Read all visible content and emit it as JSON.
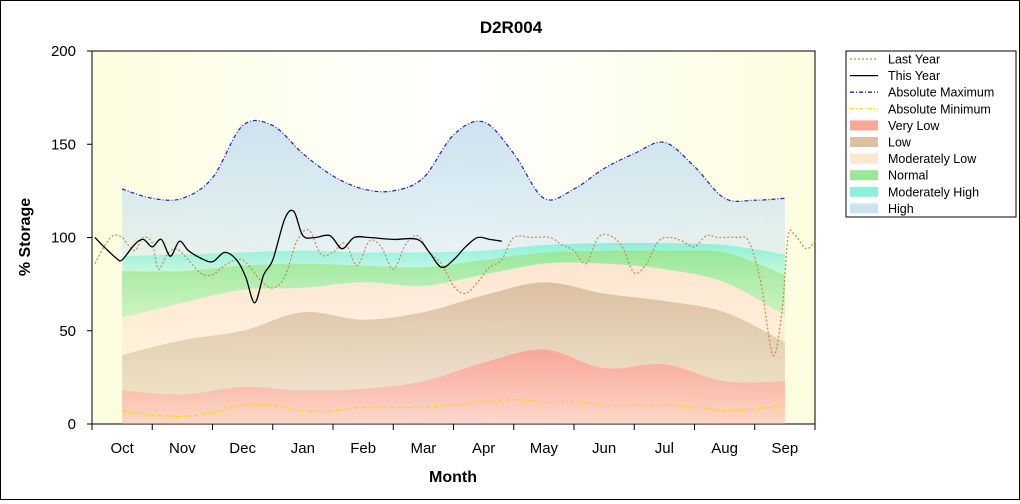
{
  "chart_data": {
    "type": "area",
    "title": "D2R004",
    "xlabel": "Month",
    "ylabel": "% Storage",
    "ylim": [
      0,
      200
    ],
    "yticks": [
      0,
      50,
      100,
      150,
      200
    ],
    "xlim": [
      -0.5,
      11.5
    ],
    "categories": [
      "Oct",
      "Nov",
      "Dec",
      "Jan",
      "Feb",
      "Mar",
      "Apr",
      "May",
      "Jun",
      "Jul",
      "Aug",
      "Sep"
    ],
    "grid": false,
    "legend_position": "right",
    "bands": [
      {
        "name": "Very Low",
        "color": "#f9a796",
        "lower": [
          [
            0,
            0
          ],
          [
            11,
            0
          ]
        ],
        "upper": [
          [
            0,
            18
          ],
          [
            1,
            16
          ],
          [
            2,
            20
          ],
          [
            3,
            18
          ],
          [
            4,
            19
          ],
          [
            5,
            23
          ],
          [
            6,
            33
          ],
          [
            7,
            40
          ],
          [
            8,
            30
          ],
          [
            9,
            32
          ],
          [
            10,
            23
          ],
          [
            11,
            23
          ]
        ]
      },
      {
        "name": "Low",
        "color": "#dcc0a0",
        "lower": [
          [
            0,
            18
          ],
          [
            1,
            16
          ],
          [
            2,
            20
          ],
          [
            3,
            18
          ],
          [
            4,
            19
          ],
          [
            5,
            23
          ],
          [
            6,
            33
          ],
          [
            7,
            40
          ],
          [
            8,
            30
          ],
          [
            9,
            32
          ],
          [
            10,
            23
          ],
          [
            11,
            23
          ]
        ],
        "upper": [
          [
            0,
            37
          ],
          [
            1,
            45
          ],
          [
            2,
            50
          ],
          [
            3,
            60
          ],
          [
            4,
            56
          ],
          [
            5,
            60
          ],
          [
            6,
            69
          ],
          [
            7,
            76
          ],
          [
            8,
            70
          ],
          [
            9,
            66
          ],
          [
            10,
            60
          ],
          [
            11,
            44
          ]
        ]
      },
      {
        "name": "Moderately Low",
        "color": "#fde5d0",
        "lower": [
          [
            0,
            37
          ],
          [
            1,
            45
          ],
          [
            2,
            50
          ],
          [
            3,
            60
          ],
          [
            4,
            56
          ],
          [
            5,
            60
          ],
          [
            6,
            69
          ],
          [
            7,
            76
          ],
          [
            8,
            70
          ],
          [
            9,
            66
          ],
          [
            10,
            60
          ],
          [
            11,
            44
          ]
        ],
        "upper": [
          [
            0,
            57
          ],
          [
            1,
            65
          ],
          [
            2,
            72
          ],
          [
            3,
            73
          ],
          [
            4,
            76
          ],
          [
            5,
            74
          ],
          [
            6,
            80
          ],
          [
            7,
            86
          ],
          [
            8,
            86
          ],
          [
            9,
            83
          ],
          [
            10,
            76
          ],
          [
            11,
            58
          ]
        ]
      },
      {
        "name": "Normal",
        "color": "#98e898",
        "lower": [
          [
            0,
            57
          ],
          [
            1,
            65
          ],
          [
            2,
            72
          ],
          [
            3,
            73
          ],
          [
            4,
            76
          ],
          [
            5,
            74
          ],
          [
            6,
            80
          ],
          [
            7,
            86
          ],
          [
            8,
            86
          ],
          [
            9,
            83
          ],
          [
            10,
            76
          ],
          [
            11,
            58
          ]
        ],
        "upper": [
          [
            0,
            82
          ],
          [
            1,
            82
          ],
          [
            2,
            85
          ],
          [
            3,
            86
          ],
          [
            4,
            85
          ],
          [
            5,
            84
          ],
          [
            6,
            88
          ],
          [
            7,
            92
          ],
          [
            8,
            93
          ],
          [
            9,
            93
          ],
          [
            10,
            92
          ],
          [
            11,
            80
          ]
        ]
      },
      {
        "name": "Moderately High",
        "color": "#8ef0d8",
        "lower": [
          [
            0,
            82
          ],
          [
            1,
            82
          ],
          [
            2,
            85
          ],
          [
            3,
            86
          ],
          [
            4,
            85
          ],
          [
            5,
            84
          ],
          [
            6,
            88
          ],
          [
            7,
            92
          ],
          [
            8,
            93
          ],
          [
            9,
            93
          ],
          [
            10,
            92
          ],
          [
            11,
            80
          ]
        ],
        "upper": [
          [
            0,
            90
          ],
          [
            1,
            91
          ],
          [
            2,
            92
          ],
          [
            3,
            93
          ],
          [
            4,
            92
          ],
          [
            5,
            92
          ],
          [
            6,
            93
          ],
          [
            7,
            96
          ],
          [
            8,
            97
          ],
          [
            9,
            97
          ],
          [
            10,
            96
          ],
          [
            11,
            91
          ]
        ]
      },
      {
        "name": "High",
        "color": "#cce3f0",
        "lower": [
          [
            0,
            90
          ],
          [
            1,
            91
          ],
          [
            2,
            92
          ],
          [
            3,
            93
          ],
          [
            4,
            92
          ],
          [
            5,
            92
          ],
          [
            6,
            93
          ],
          [
            7,
            96
          ],
          [
            8,
            97
          ],
          [
            9,
            97
          ],
          [
            10,
            96
          ],
          [
            11,
            91
          ]
        ],
        "upper": [
          [
            0,
            126
          ],
          [
            0.5,
            121
          ],
          [
            1,
            121
          ],
          [
            1.5,
            132
          ],
          [
            2,
            160
          ],
          [
            2.5,
            160
          ],
          [
            3,
            145
          ],
          [
            3.5,
            133
          ],
          [
            4,
            126
          ],
          [
            4.5,
            125
          ],
          [
            5,
            132
          ],
          [
            5.5,
            155
          ],
          [
            6,
            162
          ],
          [
            6.5,
            145
          ],
          [
            7,
            121
          ],
          [
            7.5,
            126
          ],
          [
            8,
            137
          ],
          [
            8.5,
            145
          ],
          [
            9,
            151
          ],
          [
            9.5,
            138
          ],
          [
            10,
            121
          ],
          [
            10.5,
            120
          ],
          [
            11,
            121
          ]
        ]
      }
    ],
    "series": [
      {
        "name": "Last Year",
        "color": "#cc8844",
        "style": "dotted",
        "points": [
          [
            -0.45,
            86
          ],
          [
            -0.3,
            95
          ],
          [
            -0.15,
            101
          ],
          [
            0,
            100
          ],
          [
            0.2,
            93
          ],
          [
            0.35,
            100
          ],
          [
            0.5,
            97
          ],
          [
            0.6,
            83
          ],
          [
            0.75,
            91
          ],
          [
            0.9,
            94
          ],
          [
            1.1,
            88
          ],
          [
            1.3,
            81
          ],
          [
            1.5,
            80
          ],
          [
            1.75,
            86
          ],
          [
            2.0,
            88
          ],
          [
            2.3,
            77
          ],
          [
            2.5,
            73
          ],
          [
            2.7,
            79
          ],
          [
            2.9,
            98
          ],
          [
            3.1,
            104
          ],
          [
            3.3,
            91
          ],
          [
            3.5,
            92
          ],
          [
            3.7,
            97
          ],
          [
            3.9,
            85
          ],
          [
            4.1,
            98
          ],
          [
            4.3,
            95
          ],
          [
            4.5,
            83
          ],
          [
            4.7,
            96
          ],
          [
            4.9,
            101
          ],
          [
            5.1,
            92
          ],
          [
            5.3,
            86
          ],
          [
            5.5,
            74
          ],
          [
            5.7,
            70
          ],
          [
            5.9,
            76
          ],
          [
            6.1,
            84
          ],
          [
            6.3,
            88
          ],
          [
            6.5,
            100
          ],
          [
            6.8,
            100
          ],
          [
            7.1,
            100
          ],
          [
            7.3,
            96
          ],
          [
            7.5,
            93
          ],
          [
            7.7,
            86
          ],
          [
            7.9,
            100
          ],
          [
            8.1,
            101
          ],
          [
            8.3,
            95
          ],
          [
            8.5,
            81
          ],
          [
            8.7,
            86
          ],
          [
            8.9,
            98
          ],
          [
            9.1,
            100
          ],
          [
            9.3,
            98
          ],
          [
            9.5,
            95
          ],
          [
            9.7,
            101
          ],
          [
            9.9,
            100
          ],
          [
            10.2,
            100
          ],
          [
            10.4,
            98
          ],
          [
            10.6,
            76
          ],
          [
            10.8,
            37
          ],
          [
            10.95,
            60
          ],
          [
            11.05,
            100
          ],
          [
            11.15,
            102
          ],
          [
            11.35,
            94
          ],
          [
            11.5,
            98
          ]
        ]
      },
      {
        "name": "This Year",
        "color": "#000000",
        "style": "solid",
        "points": [
          [
            -0.45,
            100
          ],
          [
            -0.3,
            95
          ],
          [
            -0.1,
            89
          ],
          [
            0,
            88
          ],
          [
            0.2,
            96
          ],
          [
            0.35,
            99
          ],
          [
            0.5,
            95
          ],
          [
            0.65,
            99
          ],
          [
            0.8,
            90
          ],
          [
            0.95,
            98
          ],
          [
            1.1,
            93
          ],
          [
            1.3,
            89
          ],
          [
            1.5,
            87
          ],
          [
            1.7,
            92
          ],
          [
            1.9,
            88
          ],
          [
            2.05,
            79
          ],
          [
            2.2,
            65
          ],
          [
            2.35,
            80
          ],
          [
            2.5,
            88
          ],
          [
            2.7,
            110
          ],
          [
            2.85,
            114
          ],
          [
            3.0,
            101
          ],
          [
            3.2,
            100
          ],
          [
            3.45,
            101
          ],
          [
            3.65,
            94
          ],
          [
            3.85,
            100
          ],
          [
            4.1,
            100
          ],
          [
            4.5,
            99
          ],
          [
            4.9,
            99
          ],
          [
            5.1,
            92
          ],
          [
            5.3,
            84
          ],
          [
            5.5,
            88
          ],
          [
            5.7,
            95
          ],
          [
            5.9,
            100
          ],
          [
            6.1,
            99
          ],
          [
            6.3,
            98
          ]
        ]
      },
      {
        "name": "Absolute Maximum",
        "color": "#2222bb",
        "style": "dashdot",
        "follows_band_top": "High"
      },
      {
        "name": "Absolute Minimum",
        "color": "#f0e000",
        "style": "dashdot",
        "points": [
          [
            0,
            7
          ],
          [
            0.5,
            5
          ],
          [
            1,
            4
          ],
          [
            1.5,
            6
          ],
          [
            2,
            10
          ],
          [
            2.5,
            10
          ],
          [
            3,
            7
          ],
          [
            3.5,
            7
          ],
          [
            4,
            9
          ],
          [
            4.5,
            9
          ],
          [
            5,
            9
          ],
          [
            5.5,
            10
          ],
          [
            6,
            12
          ],
          [
            6.5,
            13
          ],
          [
            7,
            12
          ],
          [
            7.5,
            12
          ],
          [
            8,
            10
          ],
          [
            8.5,
            10
          ],
          [
            9,
            10
          ],
          [
            9.5,
            9
          ],
          [
            10,
            7
          ],
          [
            10.5,
            8
          ],
          [
            11,
            10
          ]
        ]
      }
    ],
    "legend": [
      "Last Year",
      "This Year",
      "Absolute Maximum",
      "Absolute Minimum",
      "Very Low",
      "Low",
      "Moderately Low",
      "Normal",
      "Moderately High",
      "High"
    ]
  }
}
